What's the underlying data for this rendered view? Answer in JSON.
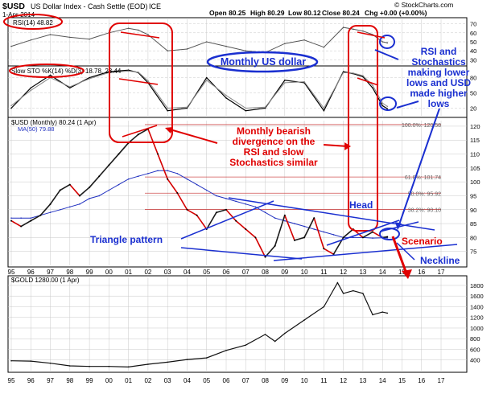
{
  "header": {
    "symbol": "$USD",
    "name": "US Dollar Index - Cash Settle (EOD)",
    "exchange": "ICE",
    "brand": "© StockCharts.com",
    "date": "1-Apr-2014",
    "open": "Open 80.25",
    "high": "High 80.29",
    "low": "Low 80.12",
    "close": "Close 80.24",
    "chg": "Chg +0.00 (+0.00%)"
  },
  "colors": {
    "price_up": "#1a1a1a",
    "price_down": "#d40000",
    "ma": "#2030c0",
    "annotation_red": "#e00000",
    "annotation_blue": "#1a2fd0",
    "fib": "#d05050",
    "grid": "#c8c8c8"
  },
  "chart_data": [
    {
      "type": "line",
      "panel": "rsi",
      "legend": "RSI(14) 48.82",
      "y_ticks": [
        30,
        40,
        50,
        60,
        70
      ],
      "ylim": [
        25,
        75
      ],
      "x": [
        1995,
        1996,
        1997,
        1998,
        1999,
        2000,
        2001,
        2001.5,
        2002,
        2003,
        2004,
        2005,
        2006,
        2007,
        2008,
        2009,
        2010,
        2011,
        2012,
        2012.5,
        2013,
        2013.5,
        2014,
        2014.25
      ],
      "series": [
        {
          "values": [
            45,
            52,
            58,
            55,
            53,
            60,
            65,
            63,
            58,
            40,
            42,
            50,
            45,
            40,
            38,
            48,
            52,
            44,
            66,
            64,
            62,
            58,
            50,
            48.82
          ]
        }
      ]
    },
    {
      "type": "line",
      "panel": "slow_sto",
      "legend": "Slow STO %K(14) %D(3) 18.78, 23.44",
      "y_ticks": [
        20,
        50,
        80
      ],
      "ylim": [
        5,
        100
      ],
      "x": [
        1995,
        1996,
        1997,
        1998,
        1999,
        2000,
        2001,
        2001.5,
        2002,
        2003,
        2004,
        2005,
        2006,
        2007,
        2008,
        2009,
        2010,
        2011,
        2012,
        2012.5,
        2013,
        2013.5,
        2014,
        2014.25
      ],
      "series": [
        {
          "values": [
            20,
            60,
            85,
            60,
            80,
            92,
            95,
            90,
            70,
            15,
            20,
            80,
            40,
            15,
            20,
            75,
            70,
            15,
            92,
            88,
            82,
            60,
            25,
            18.78
          ]
        },
        {
          "values": [
            25,
            55,
            80,
            62,
            78,
            90,
            93,
            91,
            74,
            20,
            22,
            75,
            45,
            20,
            22,
            70,
            72,
            20,
            90,
            89,
            84,
            65,
            30,
            23.44
          ]
        }
      ]
    },
    {
      "type": "line",
      "panel": "usd",
      "legend": "$USD (Monthly) 80.24 (1 Apr)",
      "ma_legend": "MA(50) 79.88",
      "x_ticks": [
        "95",
        "96",
        "97",
        "98",
        "99",
        "00",
        "01",
        "02",
        "03",
        "04",
        "05",
        "06",
        "07",
        "08",
        "09",
        "10",
        "11",
        "12",
        "13",
        "14",
        "15",
        "16",
        "17"
      ],
      "y_ticks": [
        75,
        80,
        85,
        90,
        95,
        100,
        105,
        110,
        115,
        120
      ],
      "ylim": [
        70,
        122
      ],
      "x": [
        1995.0,
        1995.5,
        1996.0,
        1996.5,
        1997.0,
        1997.5,
        1998.0,
        1998.5,
        1999.0,
        1999.5,
        2000.0,
        2000.5,
        2001.0,
        2001.5,
        2002.0,
        2002.5,
        2003.0,
        2003.5,
        2004.0,
        2004.5,
        2005.0,
        2005.5,
        2006.0,
        2006.5,
        2007.0,
        2007.5,
        2008.0,
        2008.5,
        2009.0,
        2009.5,
        2010.0,
        2010.5,
        2011.0,
        2011.5,
        2012.0,
        2012.5,
        2013.0,
        2013.5,
        2014.0,
        2014.25
      ],
      "series": [
        {
          "name": "$USD",
          "values": [
            86,
            84,
            86,
            88,
            92,
            97,
            99,
            95,
            98,
            102,
            106,
            110,
            114,
            117,
            119,
            110,
            101,
            96,
            90,
            88,
            83,
            89,
            90,
            86,
            83,
            80,
            73,
            77,
            88,
            79,
            80,
            87,
            76,
            74,
            80,
            83,
            80,
            82,
            80,
            80.24
          ]
        },
        {
          "name": "MA(50)",
          "values": [
            87,
            87,
            87,
            88,
            89,
            90,
            91,
            92,
            94,
            95,
            97,
            99,
            101,
            102,
            103,
            104,
            104,
            103,
            101,
            99,
            97,
            95,
            94,
            93,
            92,
            91,
            89,
            87,
            86,
            85,
            84,
            83,
            82,
            81,
            80,
            80,
            80,
            79.8,
            79.9,
            79.88
          ]
        }
      ],
      "fib_levels": [
        {
          "label": "100.0%: 120.58",
          "value": 120.58
        },
        {
          "label": "61.8%: 101.74",
          "value": 101.74
        },
        {
          "label": "50.0%: 95.92",
          "value": 95.92
        },
        {
          "label": "38.2%: 90.10",
          "value": 90.1
        }
      ]
    },
    {
      "type": "line",
      "panel": "gold",
      "legend": "$GOLD 1280.00 (1 Apr)",
      "x_ticks": [
        "95",
        "96",
        "97",
        "98",
        "99",
        "00",
        "01",
        "02",
        "03",
        "04",
        "05",
        "06",
        "07",
        "08",
        "09",
        "10",
        "11",
        "12",
        "13",
        "14",
        "15",
        "16",
        "17"
      ],
      "y_ticks": [
        400,
        600,
        800,
        1000,
        1200,
        1400,
        1600,
        1800
      ],
      "ylim": [
        200,
        1950
      ],
      "x": [
        1995,
        1996,
        1997,
        1998,
        1999,
        2000,
        2001,
        2002,
        2003,
        2004,
        2005,
        2006,
        2007,
        2008,
        2008.5,
        2009,
        2010,
        2011,
        2011.7,
        2012,
        2012.5,
        2013,
        2013.5,
        2014,
        2014.25
      ],
      "series": [
        {
          "name": "$GOLD",
          "values": [
            385,
            380,
            340,
            290,
            280,
            280,
            270,
            320,
            360,
            410,
            440,
            580,
            680,
            880,
            750,
            900,
            1150,
            1400,
            1850,
            1650,
            1700,
            1650,
            1250,
            1300,
            1280
          ]
        }
      ]
    }
  ],
  "annotations": {
    "monthly_usd": "Monthly US dollar",
    "divergence": [
      "Monthly bearish",
      "divergence on the",
      "RSI and slow",
      "Stochastics similar"
    ],
    "rsi_sto": [
      "RSI and",
      "Stochastics",
      "making lower",
      "lows and USD",
      "made higher",
      "lows"
    ],
    "triangle": "Triangle pattern",
    "head": "Head",
    "scenario": "Scenario",
    "neckline": "Neckline"
  }
}
